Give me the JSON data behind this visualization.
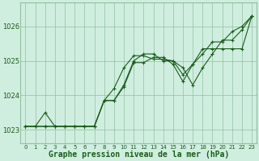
{
  "background_color": "#d0eee0",
  "grid_color": "#90c0a0",
  "line_color": "#1a5c1a",
  "xlabel": "Graphe pression niveau de la mer (hPa)",
  "xlabel_fontsize": 7,
  "ylabel_ticks": [
    1023,
    1024,
    1025,
    1026
  ],
  "xlim": [
    -0.5,
    23.5
  ],
  "ylim": [
    1022.6,
    1026.7
  ],
  "xticks": [
    0,
    1,
    2,
    3,
    4,
    5,
    6,
    7,
    8,
    9,
    10,
    11,
    12,
    13,
    14,
    15,
    16,
    17,
    18,
    19,
    20,
    21,
    22,
    23
  ],
  "series1_x": [
    0,
    1,
    2,
    3,
    4,
    5,
    6,
    7,
    8,
    9,
    10,
    11,
    12,
    13,
    14,
    15,
    16,
    17,
    18,
    19,
    20,
    21,
    22,
    23
  ],
  "series1_y": [
    1023.1,
    1023.1,
    1023.1,
    1023.1,
    1023.1,
    1023.1,
    1023.1,
    1023.1,
    1023.85,
    1024.2,
    1024.8,
    1025.15,
    1025.15,
    1025.05,
    1025.05,
    1025.0,
    1024.6,
    1024.9,
    1025.2,
    1025.55,
    1025.55,
    1025.85,
    1026.0,
    1026.3
  ],
  "series2_x": [
    0,
    2,
    3,
    4,
    5,
    6,
    7,
    8,
    9,
    10,
    11,
    12,
    13,
    14,
    15,
    16,
    17,
    18,
    19,
    20,
    21,
    22,
    23
  ],
  "series2_y": [
    1023.1,
    1023.1,
    1023.1,
    1023.1,
    1023.1,
    1023.1,
    1023.1,
    1023.85,
    1023.85,
    1024.3,
    1025.0,
    1025.2,
    1025.2,
    1025.0,
    1025.0,
    1024.8,
    1024.3,
    1024.8,
    1025.2,
    1025.6,
    1025.6,
    1025.9,
    1026.3
  ],
  "series3_x": [
    0,
    1,
    2,
    3,
    4,
    5,
    6,
    7,
    8,
    9,
    10,
    11,
    12,
    13,
    14,
    15,
    16,
    17,
    18,
    19,
    20,
    21,
    22,
    23
  ],
  "series3_y": [
    1023.1,
    1023.1,
    1023.5,
    1023.1,
    1023.1,
    1023.1,
    1023.1,
    1023.1,
    1023.85,
    1023.85,
    1024.25,
    1024.95,
    1024.95,
    1025.1,
    1025.1,
    1024.9,
    1024.4,
    1024.9,
    1025.35,
    1025.35,
    1025.35,
    1025.35,
    1025.35,
    1026.3
  ]
}
